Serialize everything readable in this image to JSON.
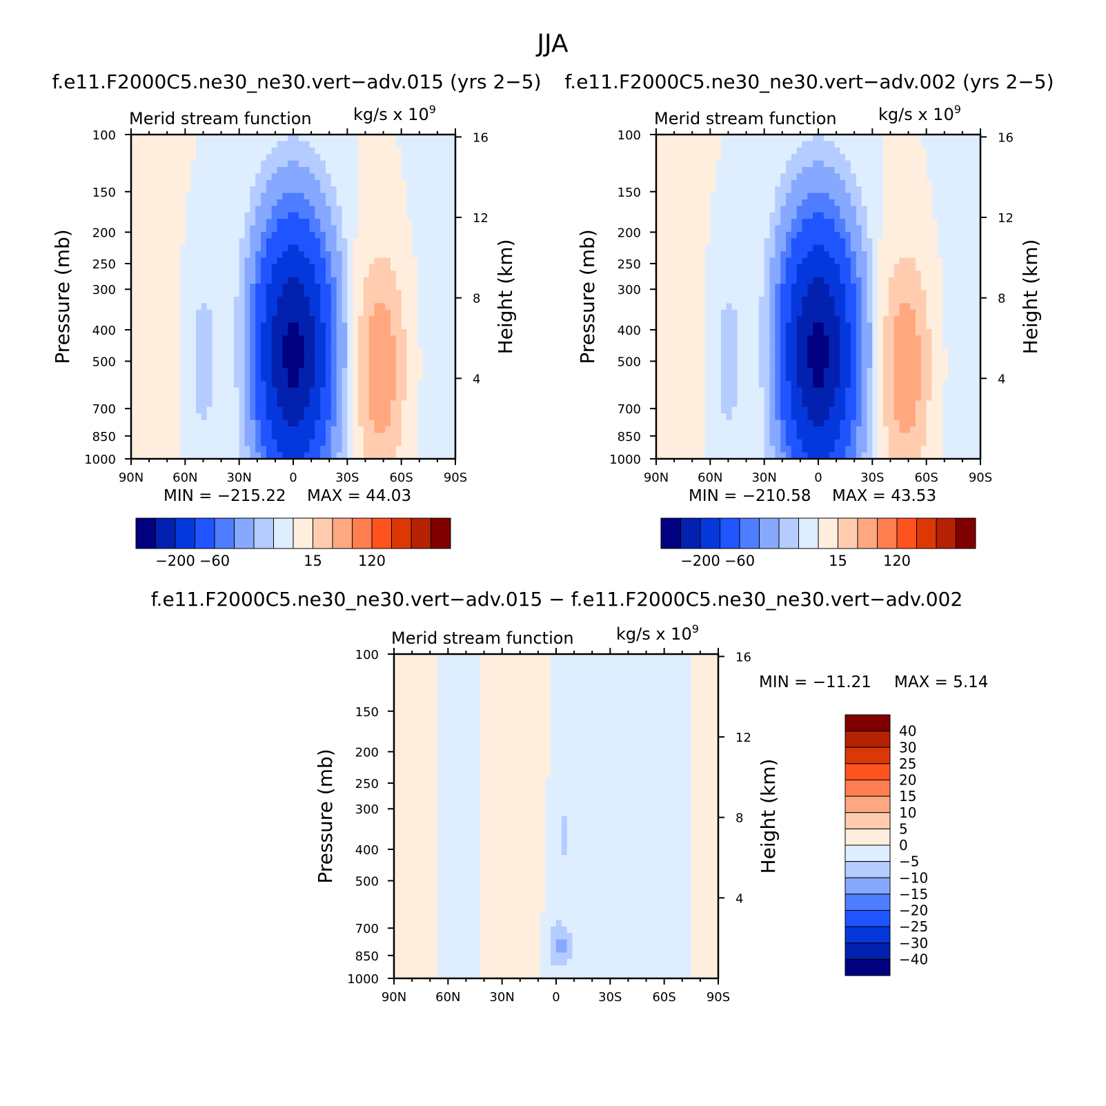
{
  "season_title": "JJA",
  "difference_title": "f.e11.F2000C5.ne30_ne30.vert−adv.015 − f.e11.F2000C5.ne30_ne30.vert−adv.002",
  "colors": {
    "abs_scale": [
      "#000080",
      "#0321af",
      "#0538dc",
      "#1f54ff",
      "#4f7dff",
      "#86a8ff",
      "#b4ccff",
      "#deeeff",
      "#ffeedd",
      "#ffccb0",
      "#ffa880",
      "#ff7d4f",
      "#ff531f",
      "#dc3805",
      "#b42103",
      "#800000"
    ],
    "diff_scale": [
      "#000080",
      "#0321af",
      "#0538dc",
      "#1f54ff",
      "#4f7dff",
      "#86a8ff",
      "#b4ccff",
      "#deeeff",
      "#ffeedd",
      "#ffccb0",
      "#ffa880",
      "#ff7d4f",
      "#ff531f",
      "#dc3805",
      "#b42103",
      "#800000"
    ]
  },
  "chart_data": [
    {
      "type": "heatmap",
      "title": "f.e11.F2000C5.ne30_ne30.vert−adv.015 (yrs 2−5)",
      "subtitle": "Merid stream function",
      "units": "kg/s x 10",
      "units_exp": "9",
      "xlabel": "",
      "ylabel": "Pressure (mb)",
      "y2label": "Height (km)",
      "x_ticks": [
        "90N",
        "60N",
        "30N",
        "0",
        "30S",
        "60S",
        "90S"
      ],
      "y_ticks": [
        "100",
        "150",
        "200",
        "250",
        "300",
        "400",
        "500",
        "700",
        "850",
        "1000"
      ],
      "y2_ticks": [
        "16",
        "12",
        "8",
        "4"
      ],
      "min_text": "MIN = −215.22",
      "max_text": "MAX =   44.03",
      "min": -215.22,
      "max": 44.03,
      "colorbar_labels": [
        "−200",
        "−60",
        "15",
        "120"
      ],
      "features": [
        {
          "lat": 0,
          "p": 450,
          "value": -215.22
        },
        {
          "lat": -48,
          "p": 500,
          "value": 44.03
        },
        {
          "lat": 28,
          "p": 450,
          "value": 6
        },
        {
          "lat": 50,
          "p": 450,
          "value": -12
        }
      ]
    },
    {
      "type": "heatmap",
      "title": "f.e11.F2000C5.ne30_ne30.vert−adv.002 (yrs 2−5)",
      "subtitle": "Merid stream function",
      "units": "kg/s x 10",
      "units_exp": "9",
      "xlabel": "",
      "ylabel": "Pressure (mb)",
      "y2label": "Height (km)",
      "x_ticks": [
        "90N",
        "60N",
        "30N",
        "0",
        "30S",
        "60S",
        "90S"
      ],
      "y_ticks": [
        "100",
        "150",
        "200",
        "250",
        "300",
        "400",
        "500",
        "700",
        "850",
        "1000"
      ],
      "y2_ticks": [
        "16",
        "12",
        "8",
        "4"
      ],
      "min_text": "MIN = −210.58",
      "max_text": "MAX =   43.53",
      "min": -210.58,
      "max": 43.53,
      "colorbar_labels": [
        "−200",
        "−60",
        "15",
        "120"
      ],
      "features": [
        {
          "lat": 3,
          "p": 500,
          "value": -210.58
        },
        {
          "lat": -48,
          "p": 500,
          "value": 43.53
        },
        {
          "lat": 28,
          "p": 450,
          "value": 6
        },
        {
          "lat": 50,
          "p": 450,
          "value": -12
        }
      ]
    },
    {
      "type": "heatmap",
      "title": "",
      "subtitle": "Merid stream function",
      "units": "kg/s x 10",
      "units_exp": "9",
      "xlabel": "",
      "ylabel": "Pressure (mb)",
      "y2label": "Height (km)",
      "x_ticks": [
        "90N",
        "60N",
        "30N",
        "0",
        "30S",
        "60S",
        "90S"
      ],
      "y_ticks": [
        "100",
        "150",
        "200",
        "250",
        "300",
        "400",
        "500",
        "700",
        "850",
        "1000"
      ],
      "y2_ticks": [
        "16",
        "12",
        "8",
        "4"
      ],
      "min_text": "MIN = −11.21",
      "max_text": "MAX =    5.14",
      "min": -11.21,
      "max": 5.14,
      "colorbar_labels": [
        "40",
        "30",
        "25",
        "20",
        "15",
        "10",
        "5",
        "0",
        "−5",
        "−10",
        "−15",
        "−20",
        "−25",
        "−30",
        "−40"
      ],
      "features": [
        {
          "lat": -2,
          "p": 780,
          "value": -11.21
        },
        {
          "lat": -4,
          "p": 350,
          "value": -6
        },
        {
          "lat": -5,
          "p": 600,
          "value": 5.14
        }
      ]
    }
  ]
}
